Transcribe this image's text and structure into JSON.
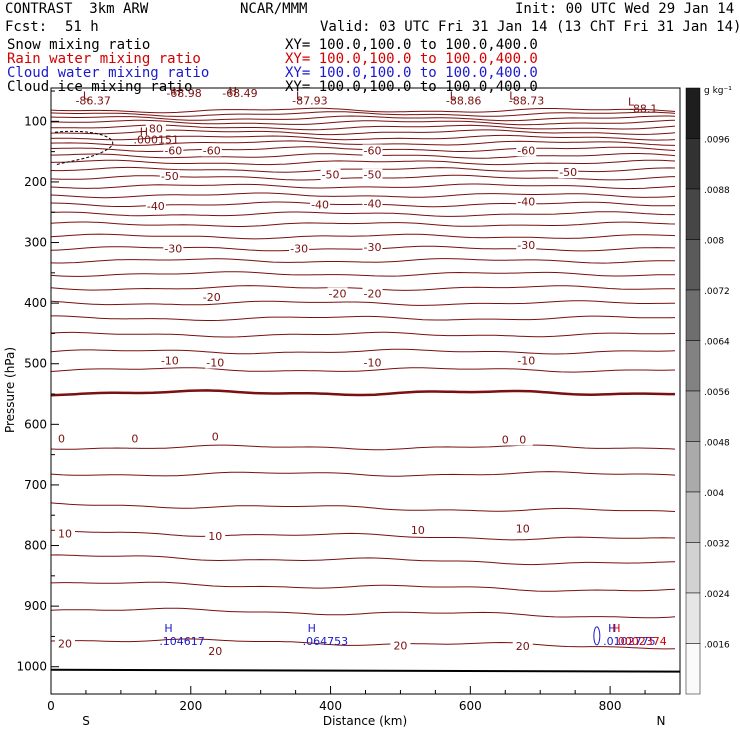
{
  "header": {
    "model": "CONTRAST  3km ARW",
    "center": "NCAR/MMM",
    "init": "Init: 00 UTC Wed 29 Jan 14",
    "fcst_label": "Fcst:",
    "fcst_value": "51 h",
    "valid": "Valid: 03 UTC Fri 31 Jan 14 (13 ChT Fri 31 Jan 14)"
  },
  "fields": [
    {
      "name": "Snow mixing ratio",
      "xy": "XY= 100.0,100.0 to 100.0,400.0",
      "color": "#000000"
    },
    {
      "name": "Rain water mixing ratio",
      "xy": "XY= 100.0,100.0 to 100.0,400.0",
      "color": "#d40000"
    },
    {
      "name": "Cloud water mixing ratio",
      "xy": "XY= 100.0,100.0 to 100.0,400.0",
      "color": "#1a1acc"
    },
    {
      "name": "Cloud ice mixing ratio",
      "xy": "XY= 100.0,100.0 to 100.0,400.0",
      "color": "#000000"
    }
  ],
  "colorbar": {
    "unit": "g kg⁻¹",
    "ticks": [
      ".0096",
      ".0088",
      ".008",
      ".0072",
      ".0064",
      ".0056",
      ".0048",
      ".004",
      ".0032",
      ".0024",
      ".0016"
    ]
  },
  "chart_data": {
    "type": "contour cross-section",
    "xlabel": "Distance (km)",
    "ylabel": "Pressure (hPa)",
    "xlim": [
      0,
      900
    ],
    "ylim": [
      1045,
      45
    ],
    "x_ticks": [
      0,
      200,
      400,
      600,
      800
    ],
    "x_tick_labels": [
      "0",
      "200",
      "400",
      "600",
      "800"
    ],
    "y_ticks": [
      100,
      200,
      300,
      400,
      500,
      600,
      700,
      800,
      900,
      1000
    ],
    "y_tick_labels": [
      "100",
      "200",
      "300",
      "400",
      "500",
      "600",
      "700",
      "800",
      "900",
      "1000"
    ],
    "left_end_label": "S",
    "right_end_label": "N",
    "temperature_contours": [
      {
        "value": 30,
        "label": "",
        "pressure": 955
      },
      {
        "value": 25,
        "label": "",
        "pressure": 905
      },
      {
        "value": 20,
        "label": "20",
        "pressure": 862
      },
      {
        "value": 15,
        "label": "",
        "pressure": 818
      },
      {
        "value": 10,
        "label": "",
        "pressure": 778
      },
      {
        "value": 5,
        "label": "",
        "pressure": 732
      },
      {
        "value": 0,
        "label": "10",
        "pressure": 682
      },
      {
        "value": -5,
        "label": "",
        "pressure": 638
      },
      {
        "value": -7,
        "label": "0",
        "pressure": 548
      },
      {
        "value": -10,
        "label": "",
        "pressure": 510
      },
      {
        "value": -11,
        "label": "",
        "pressure": 480
      },
      {
        "value": -12,
        "label": "",
        "pressure": 452
      },
      {
        "value": -13,
        "label": "",
        "pressure": 425
      },
      {
        "value": -14,
        "label": "",
        "pressure": 400
      },
      {
        "value": -15,
        "label": "",
        "pressure": 375
      },
      {
        "value": -16,
        "label": "",
        "pressure": 352
      },
      {
        "value": -17,
        "label": "",
        "pressure": 330
      },
      {
        "value": -18,
        "label": "",
        "pressure": 310
      },
      {
        "value": -19,
        "label": "",
        "pressure": 290
      },
      {
        "value": -20,
        "label": "",
        "pressure": 270
      },
      {
        "value": -21,
        "label": "",
        "pressure": 253
      },
      {
        "value": -22,
        "label": "",
        "pressure": 237
      },
      {
        "value": -23,
        "label": "",
        "pressure": 222
      },
      {
        "value": -24,
        "label": "",
        "pressure": 207
      },
      {
        "value": -25,
        "label": "",
        "pressure": 193
      },
      {
        "value": -26,
        "label": "",
        "pressure": 180
      },
      {
        "value": -27,
        "label": "",
        "pressure": 168
      },
      {
        "value": -28,
        "label": "",
        "pressure": 157
      },
      {
        "value": -29,
        "label": "",
        "pressure": 146
      },
      {
        "value": -30,
        "label": "",
        "pressure": 136
      },
      {
        "value": -31,
        "label": "",
        "pressure": 127
      },
      {
        "value": -32,
        "label": "",
        "pressure": 118
      },
      {
        "value": -33,
        "label": "",
        "pressure": 110
      },
      {
        "value": -34,
        "label": "",
        "pressure": 102
      },
      {
        "value": -35,
        "label": "",
        "pressure": 95
      },
      {
        "value": -36,
        "label": "",
        "pressure": 88
      },
      {
        "value": -37,
        "label": "",
        "pressure": 82
      }
    ],
    "contour_labels": [
      {
        "text": "-60",
        "x": 175,
        "p": 148
      },
      {
        "text": "-60",
        "x": 230,
        "p": 148
      },
      {
        "text": "-60",
        "x": 460,
        "p": 148
      },
      {
        "text": "-60",
        "x": 680,
        "p": 148
      },
      {
        "text": "-50",
        "x": 170,
        "p": 190
      },
      {
        "text": "-50",
        "x": 400,
        "p": 188
      },
      {
        "text": "-50",
        "x": 460,
        "p": 188
      },
      {
        "text": "-50",
        "x": 740,
        "p": 184
      },
      {
        "text": "-40",
        "x": 150,
        "p": 240
      },
      {
        "text": "-40",
        "x": 385,
        "p": 237
      },
      {
        "text": "-40",
        "x": 460,
        "p": 236
      },
      {
        "text": "-40",
        "x": 680,
        "p": 232
      },
      {
        "text": "-30",
        "x": 175,
        "p": 310
      },
      {
        "text": "-30",
        "x": 355,
        "p": 310
      },
      {
        "text": "-30",
        "x": 460,
        "p": 307
      },
      {
        "text": "-30",
        "x": 680,
        "p": 304
      },
      {
        "text": "-20",
        "x": 230,
        "p": 390
      },
      {
        "text": "-20",
        "x": 410,
        "p": 384
      },
      {
        "text": "-20",
        "x": 460,
        "p": 384
      },
      {
        "text": "-10",
        "x": 170,
        "p": 495
      },
      {
        "text": "-10",
        "x": 235,
        "p": 498
      },
      {
        "text": "-10",
        "x": 460,
        "p": 498
      },
      {
        "text": "-10",
        "x": 680,
        "p": 495
      },
      {
        "text": "0",
        "x": 15,
        "p": 623
      },
      {
        "text": "0",
        "x": 120,
        "p": 623
      },
      {
        "text": "0",
        "x": 235,
        "p": 620
      },
      {
        "text": "0",
        "x": 650,
        "p": 625
      },
      {
        "text": "0",
        "x": 675,
        "p": 625
      },
      {
        "text": "10",
        "x": 20,
        "p": 780
      },
      {
        "text": "10",
        "x": 235,
        "p": 784
      },
      {
        "text": "10",
        "x": 525,
        "p": 774
      },
      {
        "text": "10",
        "x": 675,
        "p": 772
      },
      {
        "text": "20",
        "x": 20,
        "p": 962
      },
      {
        "text": "20",
        "x": 235,
        "p": 974
      },
      {
        "text": "20",
        "x": 500,
        "p": 965
      },
      {
        "text": "20",
        "x": 675,
        "p": 966
      },
      {
        "text": "80",
        "x": 150,
        "p": 112
      }
    ],
    "highs_lows": [
      {
        "symbol": "L",
        "x": 50,
        "p": 57
      },
      {
        "symbol": "L",
        "x": 355,
        "p": 57
      },
      {
        "symbol": "L",
        "x": 575,
        "p": 57
      },
      {
        "symbol": "L",
        "x": 660,
        "p": 57
      },
      {
        "symbol": "L",
        "x": 830,
        "p": 67
      },
      {
        "symbol": "H",
        "x": 180,
        "p": 50
      },
      {
        "symbol": "H",
        "x": 260,
        "p": 50
      },
      {
        "symbol": "H",
        "x": 133,
        "p": 117
      }
    ],
    "extreme_values": [
      {
        "text": "-86.37",
        "x": 35,
        "p": 66,
        "color": "#7a1010"
      },
      {
        "text": "-68.98",
        "x": 165,
        "p": 53,
        "color": "#7a1010"
      },
      {
        "text": "-68.49",
        "x": 245,
        "p": 53,
        "color": "#7a1010"
      },
      {
        "text": "-87.93",
        "x": 345,
        "p": 66,
        "color": "#7a1010"
      },
      {
        "text": "-88.86",
        "x": 565,
        "p": 66,
        "color": "#7a1010"
      },
      {
        "text": "-88.73",
        "x": 655,
        "p": 66,
        "color": "#7a1010"
      },
      {
        "text": "-88.1",
        "x": 827,
        "p": 79,
        "color": "#7a1010"
      },
      {
        "text": ".000151",
        "x": 118,
        "p": 130,
        "color": "#7a1010"
      }
    ],
    "cloud_water_maxima": [
      {
        "symbol": "H",
        "value": ".104617",
        "x": 155,
        "p": 959
      },
      {
        "symbol": "H",
        "value": ".064753",
        "x": 360,
        "p": 959
      },
      {
        "symbol": "H",
        "value": ".0102775",
        "x": 790,
        "p": 959
      }
    ],
    "rain_water_maximum": {
      "symbol": "H",
      "value": ".0002374",
      "x": 803,
      "p": 959
    }
  }
}
